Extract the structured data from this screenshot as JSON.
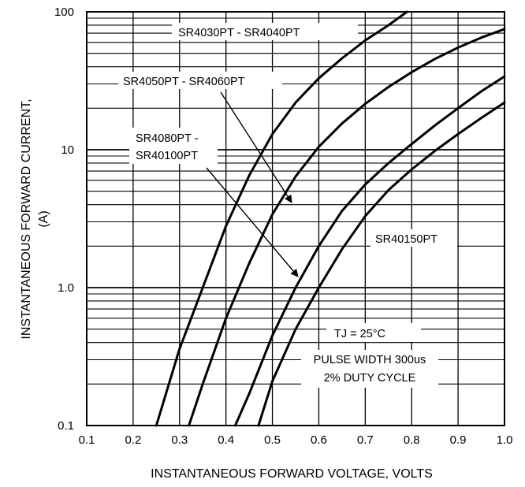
{
  "chart_data": {
    "type": "line",
    "title": "",
    "xlabel": "INSTANTANEOUS FORWARD VOLTAGE, VOLTS",
    "ylabel_lines": [
      "INSTANTANEOUS FORWARD CURRENT,",
      "(A)"
    ],
    "x_scale": "linear",
    "y_scale": "log",
    "xlim": [
      0.1,
      1.0
    ],
    "ylim": [
      0.1,
      100
    ],
    "x_ticks": [
      0.1,
      0.2,
      0.3,
      0.4,
      0.5,
      0.6,
      0.7,
      0.8,
      0.9,
      1.0
    ],
    "x_tick_labels": [
      "0.1",
      "0.2",
      "0.3",
      "0.4",
      "0.5",
      "0.6",
      "0.7",
      "0.8",
      "0.9",
      "1.0"
    ],
    "y_ticks": [
      0.1,
      1.0,
      10,
      100
    ],
    "y_tick_labels": [
      "0.1",
      "1.0",
      "10",
      "100"
    ],
    "grid": true,
    "line_color": "#000000",
    "series": [
      {
        "name": "SR4030PT - SR4040PT",
        "x": [
          0.25,
          0.3,
          0.35,
          0.4,
          0.45,
          0.5,
          0.55,
          0.6,
          0.65,
          0.7,
          0.75,
          0.79
        ],
        "y": [
          0.1,
          0.36,
          1.0,
          2.8,
          6.5,
          13.0,
          22.0,
          33.0,
          46.0,
          62.0,
          80.0,
          100.0
        ]
      },
      {
        "name": "SR4050PT - SR4060PT",
        "x": [
          0.32,
          0.35,
          0.4,
          0.45,
          0.5,
          0.55,
          0.6,
          0.65,
          0.7,
          0.75,
          0.8,
          0.85,
          0.9,
          0.95,
          1.0
        ],
        "y": [
          0.1,
          0.2,
          0.6,
          1.5,
          3.4,
          6.4,
          10.5,
          15.5,
          21.5,
          28.5,
          36.5,
          45.5,
          55.0,
          65.0,
          75.0
        ]
      },
      {
        "name": "SR4080PT - SR40100PT",
        "x": [
          0.42,
          0.45,
          0.5,
          0.55,
          0.6,
          0.65,
          0.7,
          0.75,
          0.8,
          0.85,
          0.9,
          0.95,
          1.0
        ],
        "y": [
          0.1,
          0.17,
          0.45,
          1.0,
          2.0,
          3.6,
          5.6,
          8.0,
          11.0,
          15.0,
          20.0,
          26.5,
          34.0
        ]
      },
      {
        "name": "SR40150PT",
        "x": [
          0.47,
          0.5,
          0.55,
          0.6,
          0.65,
          0.7,
          0.75,
          0.8,
          0.85,
          0.9,
          0.95,
          1.0
        ],
        "y": [
          0.1,
          0.21,
          0.5,
          1.0,
          1.9,
          3.3,
          5.1,
          7.2,
          9.8,
          13.0,
          17.0,
          22.0
        ]
      }
    ],
    "annotations": {
      "label_sr4030": "SR4030PT - SR4040PT",
      "label_sr4050": "SR4050PT - SR4060PT",
      "label_sr4080_line1": "SR4080PT -",
      "label_sr4080_line2": "SR40100PT",
      "label_sr40150": "SR40150PT",
      "tj": "TJ = 25°C",
      "pulse_line1": "PULSE WIDTH 300us",
      "pulse_line2": "2% DUTY CYCLE"
    }
  }
}
